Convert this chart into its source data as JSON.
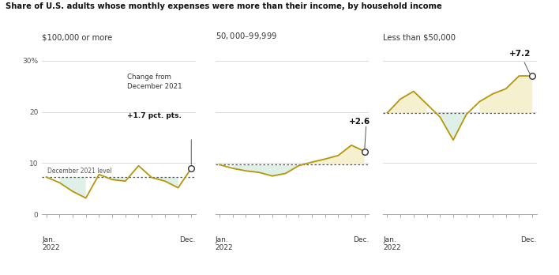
{
  "title": "Share of U.S. adults whose monthly expenses were more than their income, by household income",
  "panels": [
    {
      "label": "$100,000 or more",
      "baseline": 7.3,
      "ylim": [
        0,
        30
      ],
      "yticks": [
        0,
        10,
        20,
        30
      ],
      "values": [
        7.3,
        6.2,
        4.5,
        3.2,
        7.8,
        6.8,
        6.5,
        9.5,
        7.2,
        6.5,
        5.2,
        9.0
      ]
    },
    {
      "label": "$50,000–$99,999",
      "baseline": 9.7,
      "ylim": [
        0,
        30
      ],
      "yticks": [],
      "values": [
        9.7,
        9.0,
        8.5,
        8.2,
        7.5,
        8.0,
        9.5,
        10.2,
        10.8,
        11.5,
        13.5,
        12.3
      ]
    },
    {
      "label": "Less than $50,000",
      "baseline": 19.8,
      "ylim": [
        0,
        30
      ],
      "yticks": [],
      "values": [
        19.8,
        22.5,
        24.0,
        21.5,
        19.0,
        14.5,
        19.5,
        22.0,
        23.5,
        24.5,
        27.0,
        27.0
      ]
    }
  ],
  "change_annotations": [
    {
      "text_line1": "Change from",
      "text_line2": "December 2021",
      "text_bold": "+1.7 pct. pts.",
      "value_label": "+1.7 pct. pts."
    },
    {
      "text_bold": "+2.6"
    },
    {
      "text_bold": "+7.2"
    }
  ],
  "line_color": "#b5960a",
  "fill_above_color": "#f5f0d0",
  "fill_below_color": "#dff0e8",
  "dot_color": "#ffffff",
  "dot_edge_color": "#333333",
  "baseline_dotcolor": "#555555",
  "n_points": 12,
  "background_color": "#ffffff"
}
